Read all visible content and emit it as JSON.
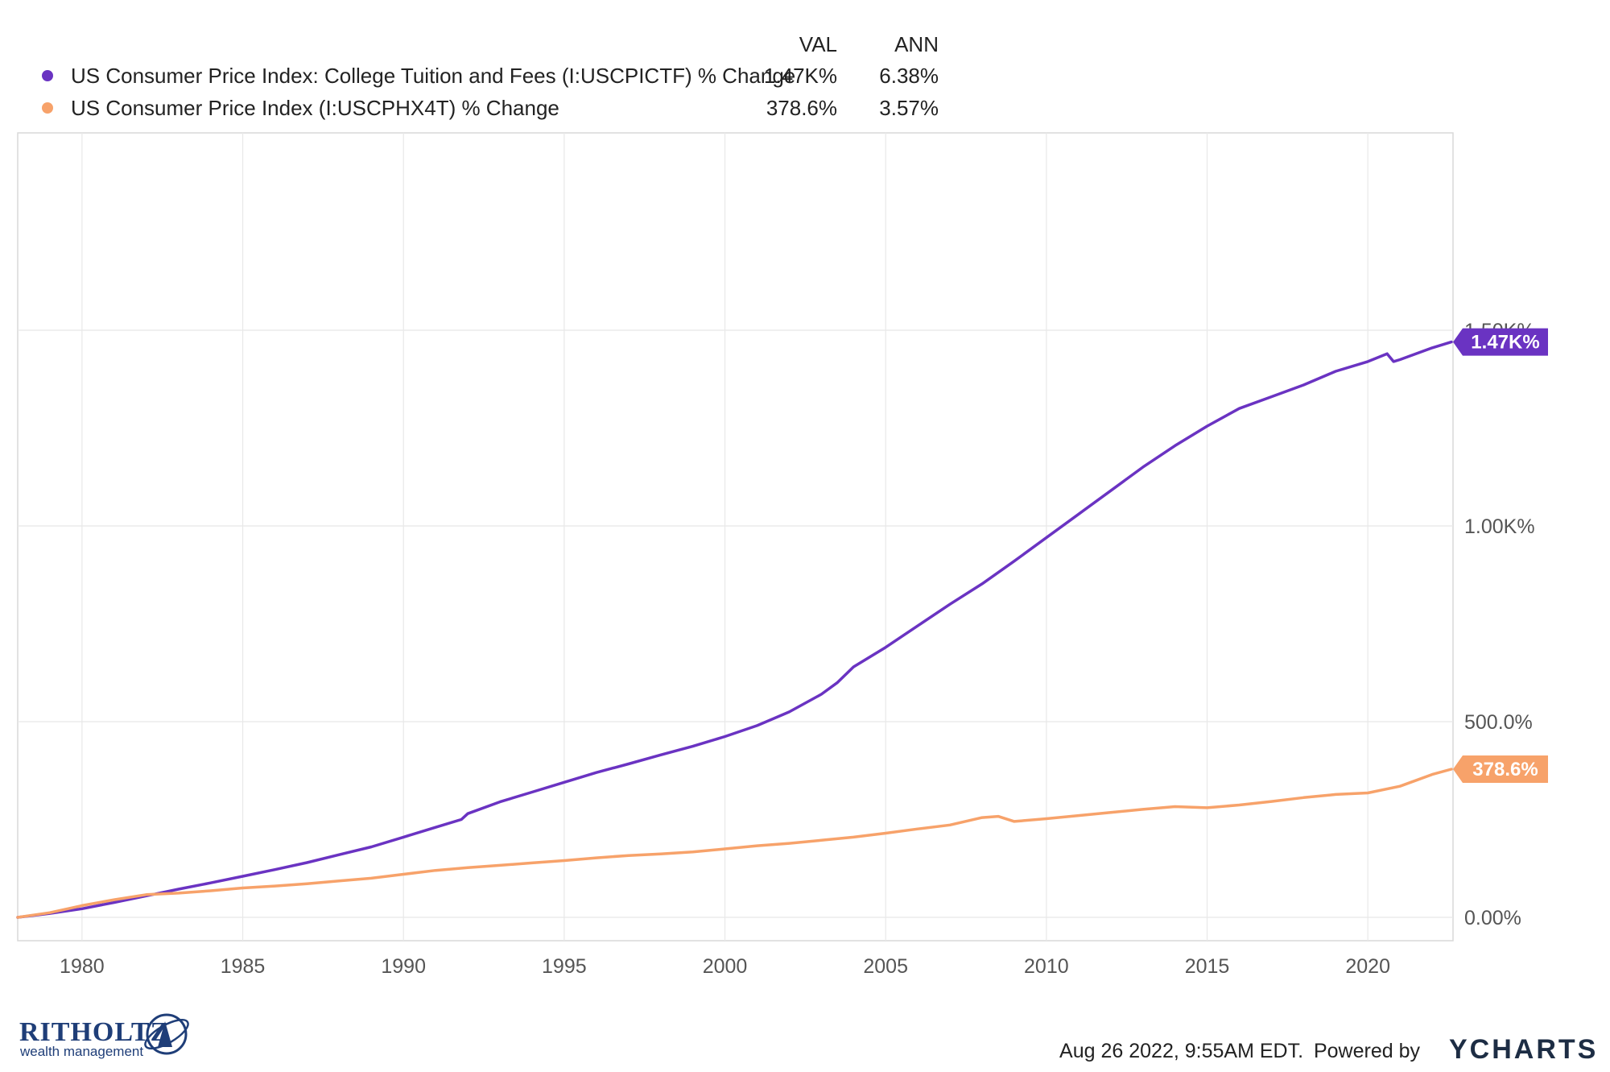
{
  "legend": {
    "col_val": "VAL",
    "col_ann": "ANN",
    "rows": [
      {
        "name": "US Consumer Price Index: College Tuition and Fees (I:USCPICTF) % Change",
        "val": "1.47K%",
        "ann": "6.38%",
        "color": "#6a33c2"
      },
      {
        "name": "US Consumer Price Index (I:USCPHX4T) % Change",
        "val": "378.6%",
        "ann": "3.57%",
        "color": "#f7a26a"
      }
    ]
  },
  "chart_data": {
    "type": "line",
    "x_ticks": [
      "1980",
      "1985",
      "1990",
      "1995",
      "2000",
      "2005",
      "2010",
      "2015",
      "2020"
    ],
    "y_ticks": [
      "0.00%",
      "500.0%",
      "1.00K%",
      "1.50K%"
    ],
    "y_tick_values": [
      0,
      500,
      1000,
      1500
    ],
    "xlim": [
      1978.0,
      2022.65
    ],
    "ylim": [
      -60,
      2000
    ],
    "grid": true,
    "series": [
      {
        "name": "US Consumer Price Index: College Tuition and Fees (I:USCPICTF) % Change",
        "color": "#6a33c2",
        "end_label": "1.47K%",
        "end_value": 1470,
        "points": [
          [
            1978.0,
            0
          ],
          [
            1979,
            10
          ],
          [
            1980,
            22
          ],
          [
            1981,
            38
          ],
          [
            1982,
            55
          ],
          [
            1983,
            72
          ],
          [
            1984,
            88
          ],
          [
            1985,
            105
          ],
          [
            1986,
            122
          ],
          [
            1987,
            140
          ],
          [
            1988,
            160
          ],
          [
            1989,
            180
          ],
          [
            1990,
            205
          ],
          [
            1991,
            230
          ],
          [
            1991.8,
            250
          ],
          [
            1992,
            265
          ],
          [
            1993,
            295
          ],
          [
            1994,
            320
          ],
          [
            1995,
            345
          ],
          [
            1996,
            370
          ],
          [
            1997,
            392
          ],
          [
            1998,
            415
          ],
          [
            1999,
            437
          ],
          [
            2000,
            462
          ],
          [
            2001,
            490
          ],
          [
            2002,
            525
          ],
          [
            2003,
            570
          ],
          [
            2003.5,
            600
          ],
          [
            2004,
            640
          ],
          [
            2005,
            690
          ],
          [
            2006,
            745
          ],
          [
            2007,
            800
          ],
          [
            2008,
            852
          ],
          [
            2009,
            910
          ],
          [
            2010,
            970
          ],
          [
            2011,
            1030
          ],
          [
            2012,
            1090
          ],
          [
            2013,
            1150
          ],
          [
            2014,
            1205
          ],
          [
            2015,
            1255
          ],
          [
            2016,
            1300
          ],
          [
            2017,
            1330
          ],
          [
            2018,
            1360
          ],
          [
            2019,
            1395
          ],
          [
            2020,
            1420
          ],
          [
            2020.6,
            1440
          ],
          [
            2020.8,
            1420
          ],
          [
            2021,
            1425
          ],
          [
            2022,
            1455
          ],
          [
            2022.6,
            1470
          ]
        ]
      },
      {
        "name": "US Consumer Price Index (I:USCPHX4T) % Change",
        "color": "#f7a26a",
        "end_label": "378.6%",
        "end_value": 378.6,
        "points": [
          [
            1978.0,
            0
          ],
          [
            1979,
            12
          ],
          [
            1980,
            30
          ],
          [
            1981,
            45
          ],
          [
            1982,
            58
          ],
          [
            1983,
            62
          ],
          [
            1984,
            68
          ],
          [
            1985,
            75
          ],
          [
            1986,
            80
          ],
          [
            1987,
            86
          ],
          [
            1988,
            93
          ],
          [
            1989,
            100
          ],
          [
            1990,
            110
          ],
          [
            1991,
            120
          ],
          [
            1992,
            127
          ],
          [
            1993,
            133
          ],
          [
            1994,
            139
          ],
          [
            1995,
            145
          ],
          [
            1996,
            152
          ],
          [
            1997,
            158
          ],
          [
            1998,
            162
          ],
          [
            1999,
            167
          ],
          [
            2000,
            175
          ],
          [
            2001,
            183
          ],
          [
            2002,
            189
          ],
          [
            2003,
            197
          ],
          [
            2004,
            205
          ],
          [
            2005,
            215
          ],
          [
            2006,
            226
          ],
          [
            2007,
            236
          ],
          [
            2008,
            255
          ],
          [
            2008.5,
            258
          ],
          [
            2009,
            245
          ],
          [
            2010,
            252
          ],
          [
            2011,
            260
          ],
          [
            2012,
            268
          ],
          [
            2013,
            276
          ],
          [
            2014,
            283
          ],
          [
            2015,
            280
          ],
          [
            2016,
            287
          ],
          [
            2017,
            296
          ],
          [
            2018,
            306
          ],
          [
            2019,
            314
          ],
          [
            2020,
            318
          ],
          [
            2021,
            335
          ],
          [
            2022,
            365
          ],
          [
            2022.6,
            378.6
          ]
        ]
      }
    ]
  },
  "footer": {
    "timestamp": "Aug 26 2022, 9:55AM EDT.",
    "powered_by": "Powered by",
    "ycharts": "YCHARTS",
    "brand_name": "RITHOLTZ",
    "brand_sub": "wealth management"
  }
}
